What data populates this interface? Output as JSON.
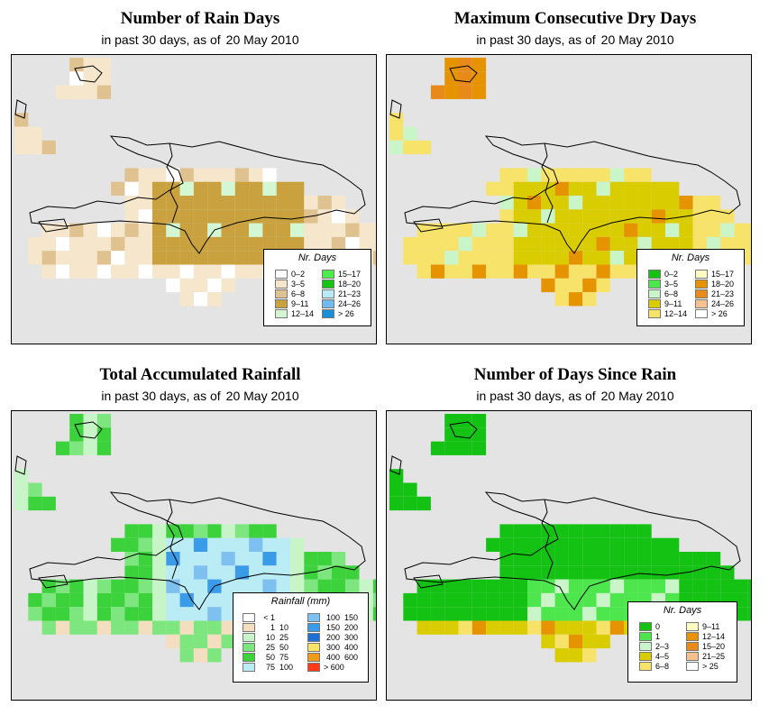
{
  "date": "20 May 2010",
  "panels": [
    {
      "title": "Number of Rain Days",
      "subtitle": "in past 30 days, as of",
      "legend_title": "Nr. Days",
      "legend_items": [
        {
          "label": "0–2",
          "color": "#ffffff"
        },
        {
          "label": "3–5",
          "color": "#f5e6cc"
        },
        {
          "label": "6–8",
          "color": "#dfc28f"
        },
        {
          "label": "9–11",
          "color": "#c9a23f"
        },
        {
          "label": "12–14",
          "color": "#d2f7d2"
        },
        {
          "label": "15–17",
          "color": "#4cec4c"
        },
        {
          "label": "18–20",
          "color": "#15c415"
        },
        {
          "label": "21–23",
          "color": "#b8eaf7"
        },
        {
          "label": "24–26",
          "color": "#70baf0"
        },
        {
          "label": "> 26",
          "color": "#1a8fd6"
        }
      ]
    },
    {
      "title": "Maximum Consecutive Dry Days",
      "subtitle": "in past 30 days, as of",
      "legend_title": "Nr. Days",
      "legend_items": [
        {
          "label": "0–2",
          "color": "#14c214"
        },
        {
          "label": "3–5",
          "color": "#4de64d"
        },
        {
          "label": "6–8",
          "color": "#c9f5c9"
        },
        {
          "label": "9–11",
          "color": "#d9cc00"
        },
        {
          "label": "12–14",
          "color": "#f7e36a"
        },
        {
          "label": "15–17",
          "color": "#fffbc2"
        },
        {
          "label": "18–20",
          "color": "#e59400"
        },
        {
          "label": "21–23",
          "color": "#e88a1a"
        },
        {
          "label": "24–26",
          "color": "#f7c08f"
        },
        {
          "label": "> 26",
          "color": "#ffffff"
        }
      ]
    },
    {
      "title": "Total Accumulated Rainfall",
      "subtitle": "in past 30 days, as of",
      "legend_title": "Rainfall (mm)",
      "legend_items": [
        {
          "lo": "< 1",
          "hi": "",
          "color": "#ffffff"
        },
        {
          "lo": "1",
          "hi": "10",
          "color": "#f3dfbf"
        },
        {
          "lo": "10",
          "hi": "25",
          "color": "#c8f5c8"
        },
        {
          "lo": "25",
          "hi": "50",
          "color": "#7ee67e"
        },
        {
          "lo": "50",
          "hi": "75",
          "color": "#3cd23c"
        },
        {
          "lo": "75",
          "hi": "100",
          "color": "#b9ecf5"
        },
        {
          "lo": "100",
          "hi": "150",
          "color": "#7ec0f0"
        },
        {
          "lo": "150",
          "hi": "200",
          "color": "#3a9be8"
        },
        {
          "lo": "200",
          "hi": "300",
          "color": "#1f6fd6"
        },
        {
          "lo": "300",
          "hi": "400",
          "color": "#f7e36a"
        },
        {
          "lo": "400",
          "hi": "600",
          "color": "#f09a1a"
        },
        {
          "lo": "> 600",
          "hi": "",
          "color": "#ff3b1a"
        }
      ]
    },
    {
      "title": "Number of Days Since Rain",
      "subtitle": "in past 30 days, as of",
      "legend_title": "Nr. Days",
      "legend_items": [
        {
          "label": "0",
          "color": "#14c214"
        },
        {
          "label": "1",
          "color": "#4de64d"
        },
        {
          "label": "2–3",
          "color": "#c9f5c9"
        },
        {
          "label": "4–5",
          "color": "#d9cc00"
        },
        {
          "label": "6–8",
          "color": "#f7e36a"
        },
        {
          "label": "9–11",
          "color": "#fffbc2"
        },
        {
          "label": "12–14",
          "color": "#e59400"
        },
        {
          "label": "15–20",
          "color": "#e88a1a"
        },
        {
          "label": "21–25",
          "color": "#f7c08f"
        },
        {
          "label": "> 25",
          "color": "#ffffff"
        }
      ]
    }
  ]
}
